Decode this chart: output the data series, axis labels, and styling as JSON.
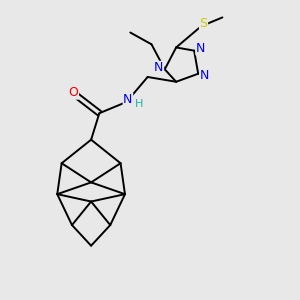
{
  "bg_color": "#e8e8e8",
  "bond_color": "#000000",
  "bond_width": 1.4,
  "atom_colors": {
    "N": "#0000ee",
    "O": "#ee0000",
    "S": "#cccc00",
    "C": "#000000",
    "H": "#20b2aa"
  },
  "figsize": [
    3.0,
    3.0
  ],
  "dpi": 100,
  "xlim": [
    0,
    10
  ],
  "ylim": [
    0,
    10
  ]
}
